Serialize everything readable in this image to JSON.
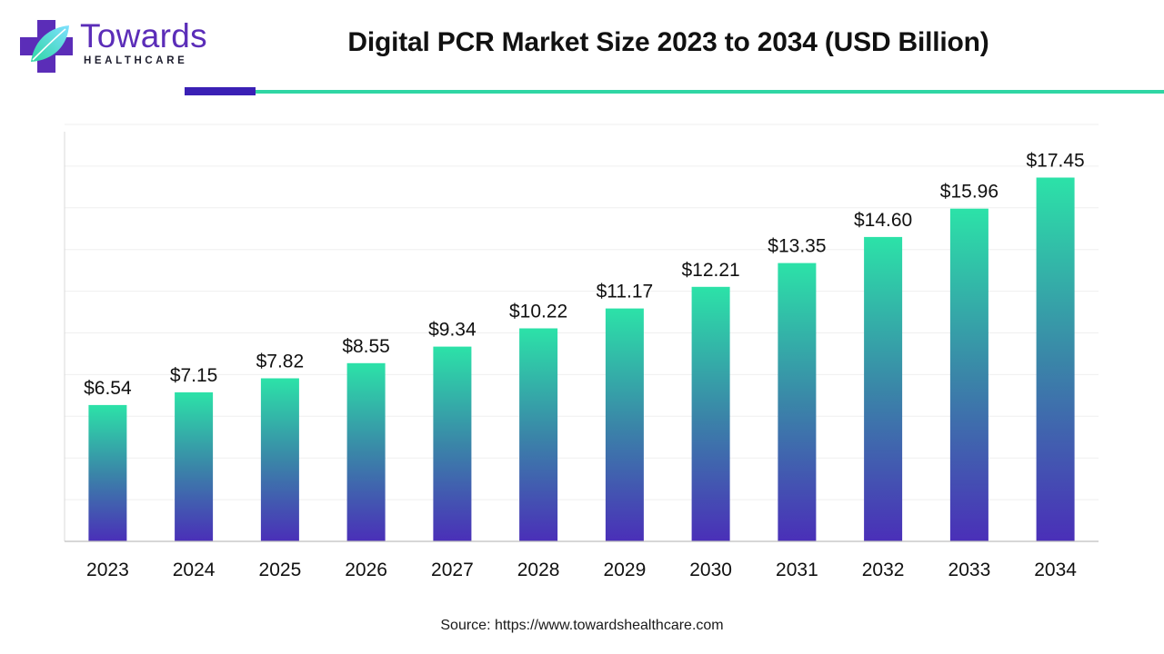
{
  "brand": {
    "name": "Towards",
    "tagline": "HEALTHCARE"
  },
  "source_label": "Source: https://www.towardshealthcare.com",
  "colors": {
    "bar_top": "#2ce2a8",
    "bar_mid": "#3a86a8",
    "bar_bottom": "#4a2fb8",
    "accent_purple": "#3a20b5",
    "accent_teal": "#2fd6a4",
    "brand_purple": "#5b2db8"
  },
  "chart_data": {
    "type": "bar",
    "title": "Digital PCR Market Size 2023 to 2034 (USD Billion)",
    "xlabel": "",
    "ylabel": "",
    "categories": [
      "2023",
      "2024",
      "2025",
      "2026",
      "2027",
      "2028",
      "2029",
      "2030",
      "2031",
      "2032",
      "2033",
      "2034"
    ],
    "values": [
      6.54,
      7.15,
      7.82,
      8.55,
      9.34,
      10.22,
      11.17,
      12.21,
      13.35,
      14.6,
      15.96,
      17.45
    ],
    "value_labels": [
      "$6.54",
      "$7.15",
      "$7.82",
      "$8.55",
      "$9.34",
      "$10.22",
      "$11.17",
      "$12.21",
      "$13.35",
      "$14.60",
      "$15.96",
      "$17.45"
    ],
    "ylim": [
      0,
      20
    ],
    "grid": true,
    "legend": "none"
  }
}
